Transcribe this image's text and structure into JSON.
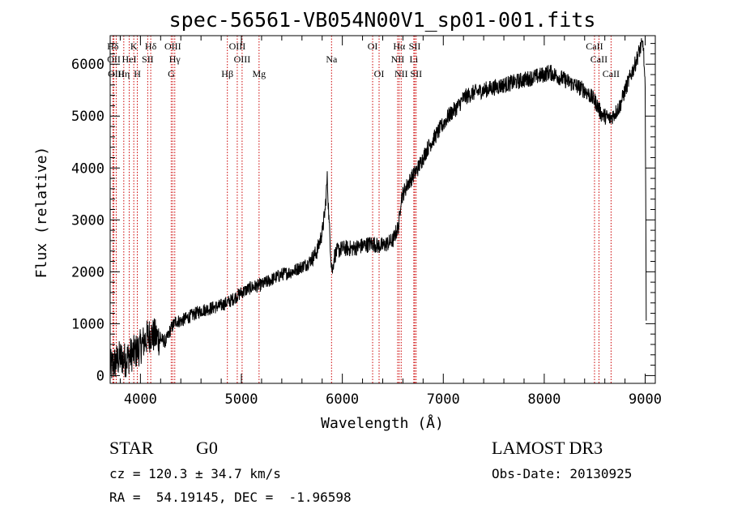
{
  "chart_data": {
    "type": "line",
    "title": "spec-56561-VB054N00V1_sp01-001.fits",
    "xlabel": "Wavelength (Å)",
    "ylabel": "Flux (relative)",
    "xlim": [
      3700,
      9100
    ],
    "ylim": [
      -150,
      6550
    ],
    "xticks": [
      4000,
      5000,
      6000,
      7000,
      8000,
      9000
    ],
    "yticks": [
      0,
      1000,
      2000,
      3000,
      4000,
      5000,
      6000
    ],
    "xtick_labels": [
      "4000",
      "5000",
      "6000",
      "7000",
      "8000",
      "9000"
    ],
    "ytick_labels": [
      "0",
      "1000",
      "2000",
      "3000",
      "4000",
      "5000",
      "6000"
    ],
    "series": [
      {
        "name": "flux",
        "x": [
          3700,
          3750,
          3800,
          3850,
          3900,
          3950,
          4000,
          4050,
          4100,
          4150,
          4200,
          4250,
          4300,
          4350,
          4400,
          4500,
          4600,
          4700,
          4800,
          4900,
          5000,
          5100,
          5200,
          5300,
          5400,
          5500,
          5600,
          5650,
          5700,
          5750,
          5800,
          5830,
          5850,
          5870,
          5890,
          5900,
          5920,
          5950,
          6000,
          6100,
          6200,
          6300,
          6350,
          6400,
          6450,
          6500,
          6560,
          6580,
          6600,
          6650,
          6700,
          6750,
          6800,
          6850,
          6900,
          6950,
          7000,
          7050,
          7100,
          7150,
          7200,
          7300,
          7400,
          7500,
          7600,
          7700,
          7800,
          7900,
          8000,
          8050,
          8100,
          8200,
          8300,
          8400,
          8450,
          8500,
          8540,
          8560,
          8600,
          8650,
          8700,
          8750,
          8800,
          8850,
          8900,
          8950,
          8980,
          9000,
          9010
        ],
        "y": [
          150,
          250,
          350,
          300,
          400,
          450,
          550,
          700,
          800,
          750,
          700,
          650,
          900,
          1050,
          1050,
          1150,
          1250,
          1300,
          1350,
          1450,
          1600,
          1700,
          1750,
          1850,
          1950,
          2000,
          2100,
          2150,
          2250,
          2400,
          2750,
          3200,
          3800,
          2900,
          2200,
          2000,
          2300,
          2400,
          2450,
          2450,
          2500,
          2550,
          2500,
          2500,
          2550,
          2600,
          2900,
          3400,
          3500,
          3700,
          3850,
          4000,
          4200,
          4400,
          4550,
          4700,
          4850,
          5000,
          5100,
          5200,
          5350,
          5450,
          5500,
          5550,
          5600,
          5650,
          5700,
          5750,
          5800,
          5850,
          5800,
          5700,
          5600,
          5500,
          5400,
          5300,
          5150,
          5050,
          5000,
          4950,
          5050,
          5200,
          5500,
          5750,
          6000,
          6300,
          6400,
          5500,
          1200
        ]
      }
    ],
    "lines": [
      {
        "name": "Hδ",
        "x": 3727,
        "row": 1
      },
      {
        "name": "OII",
        "x": 3737,
        "row": 2
      },
      {
        "name": "OIII",
        "x": 3760,
        "row": 3
      },
      {
        "name": "Hη",
        "x": 3835,
        "row": 3
      },
      {
        "name": "HeI",
        "x": 3889,
        "row": 2
      },
      {
        "name": "K",
        "x": 3934,
        "row": 1
      },
      {
        "name": "H",
        "x": 3969,
        "row": 3
      },
      {
        "name": "SII",
        "x": 4072,
        "row": 2
      },
      {
        "name": "Hδ",
        "x": 4102,
        "row": 1
      },
      {
        "name": "OIII",
        "x": 4320,
        "row": 1
      },
      {
        "name": "Hγ",
        "x": 4340,
        "row": 2
      },
      {
        "name": "G",
        "x": 4305,
        "row": 3
      },
      {
        "name": "Hβ",
        "x": 4861,
        "row": 3
      },
      {
        "name": "OIII",
        "x": 4959,
        "row": 1
      },
      {
        "name": "OIII",
        "x": 5007,
        "row": 2
      },
      {
        "name": "Mg",
        "x": 5175,
        "row": 3
      },
      {
        "name": "Na",
        "x": 5893,
        "row": 2
      },
      {
        "name": "OI",
        "x": 6300,
        "row": 1
      },
      {
        "name": "OI",
        "x": 6364,
        "row": 3
      },
      {
        "name": "Hα",
        "x": 6563,
        "row": 1
      },
      {
        "name": "NII",
        "x": 6548,
        "row": 2
      },
      {
        "name": "NII",
        "x": 6583,
        "row": 3
      },
      {
        "name": "SII",
        "x": 6717,
        "row": 1
      },
      {
        "name": "Li",
        "x": 6708,
        "row": 2
      },
      {
        "name": "SII",
        "x": 6731,
        "row": 3
      },
      {
        "name": "CaII",
        "x": 8498,
        "row": 1
      },
      {
        "name": "CaII",
        "x": 8542,
        "row": 2
      },
      {
        "name": "CaII",
        "x": 8662,
        "row": 3
      }
    ],
    "line_color": "#cc0000",
    "series_color": "#000000"
  },
  "info": {
    "object_class": "STAR",
    "subclass": "G0",
    "survey": "LAMOST DR3",
    "cz": "cz = 120.3 ± 34.7 km/s",
    "obs_date": "Obs-Date: 20130925",
    "coords": "RA =  54.19145, DEC =  -1.96598"
  }
}
